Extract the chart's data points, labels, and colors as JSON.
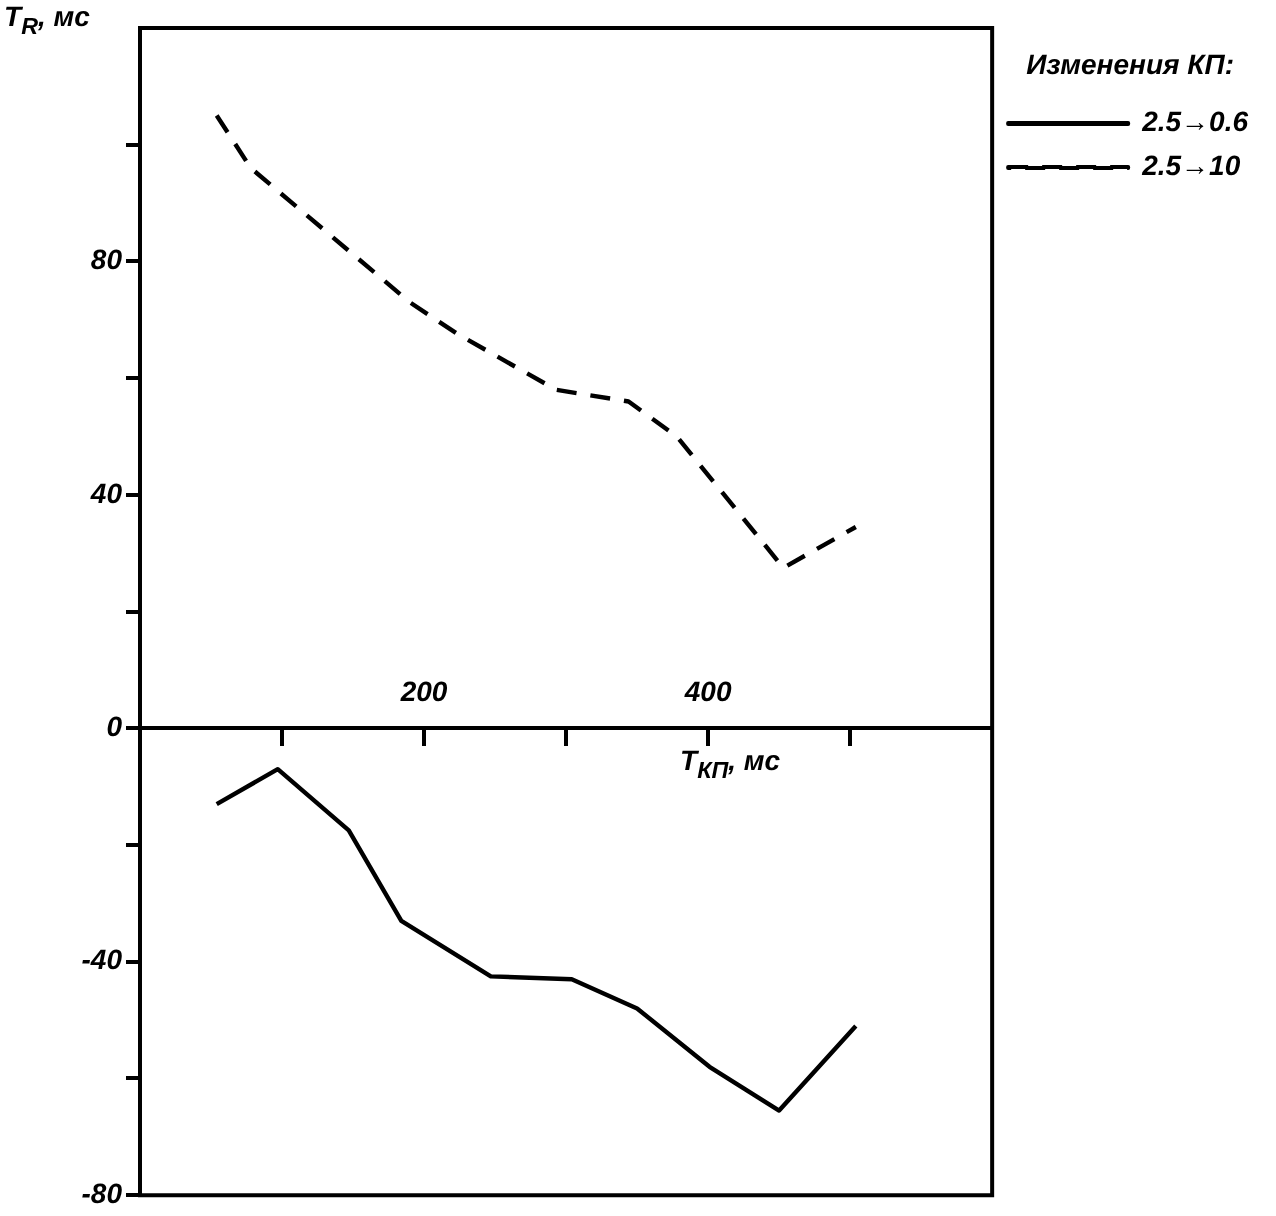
{
  "chart_data": {
    "type": "line",
    "xlabel": "T$_{КП}$, мс",
    "ylabel": "T$_{R}$, мс",
    "legend_title": "Изменения КП:",
    "xlim": [
      0,
      600
    ],
    "xticks": [
      {
        "value": 100,
        "label": null
      },
      200,
      {
        "value": 300,
        "label": null
      },
      400,
      {
        "value": 500,
        "label": null
      }
    ],
    "ylim": [
      -80,
      120
    ],
    "yticks": [
      -80,
      {
        "value": -60,
        "label": null
      },
      -40,
      {
        "value": -20,
        "label": null
      },
      0,
      {
        "value": 20,
        "label": null
      },
      40,
      {
        "value": 60,
        "label": null
      },
      80,
      {
        "value": 100,
        "label": null
      }
    ],
    "grid": false,
    "legend": "top right",
    "marker": "none",
    "series": [
      {
        "name": "2.5→0.6",
        "color": "#000000",
        "line_style": "solid",
        "x": [
          54,
          97,
          147,
          184,
          247,
          304,
          350,
          401,
          450,
          504
        ],
        "values": [
          -13,
          -7,
          -17.5,
          -33,
          -42.5,
          -43,
          -48,
          -58,
          -65.5,
          -51
        ]
      },
      {
        "name": "2.5→10",
        "color": "#000000",
        "line_style": "dashed",
        "x": [
          54,
          78,
          190,
          224,
          293,
          344,
          378,
          453,
          504
        ],
        "values": [
          105,
          96,
          73,
          67.5,
          58,
          56,
          50,
          27.5,
          34.5
        ]
      }
    ]
  }
}
